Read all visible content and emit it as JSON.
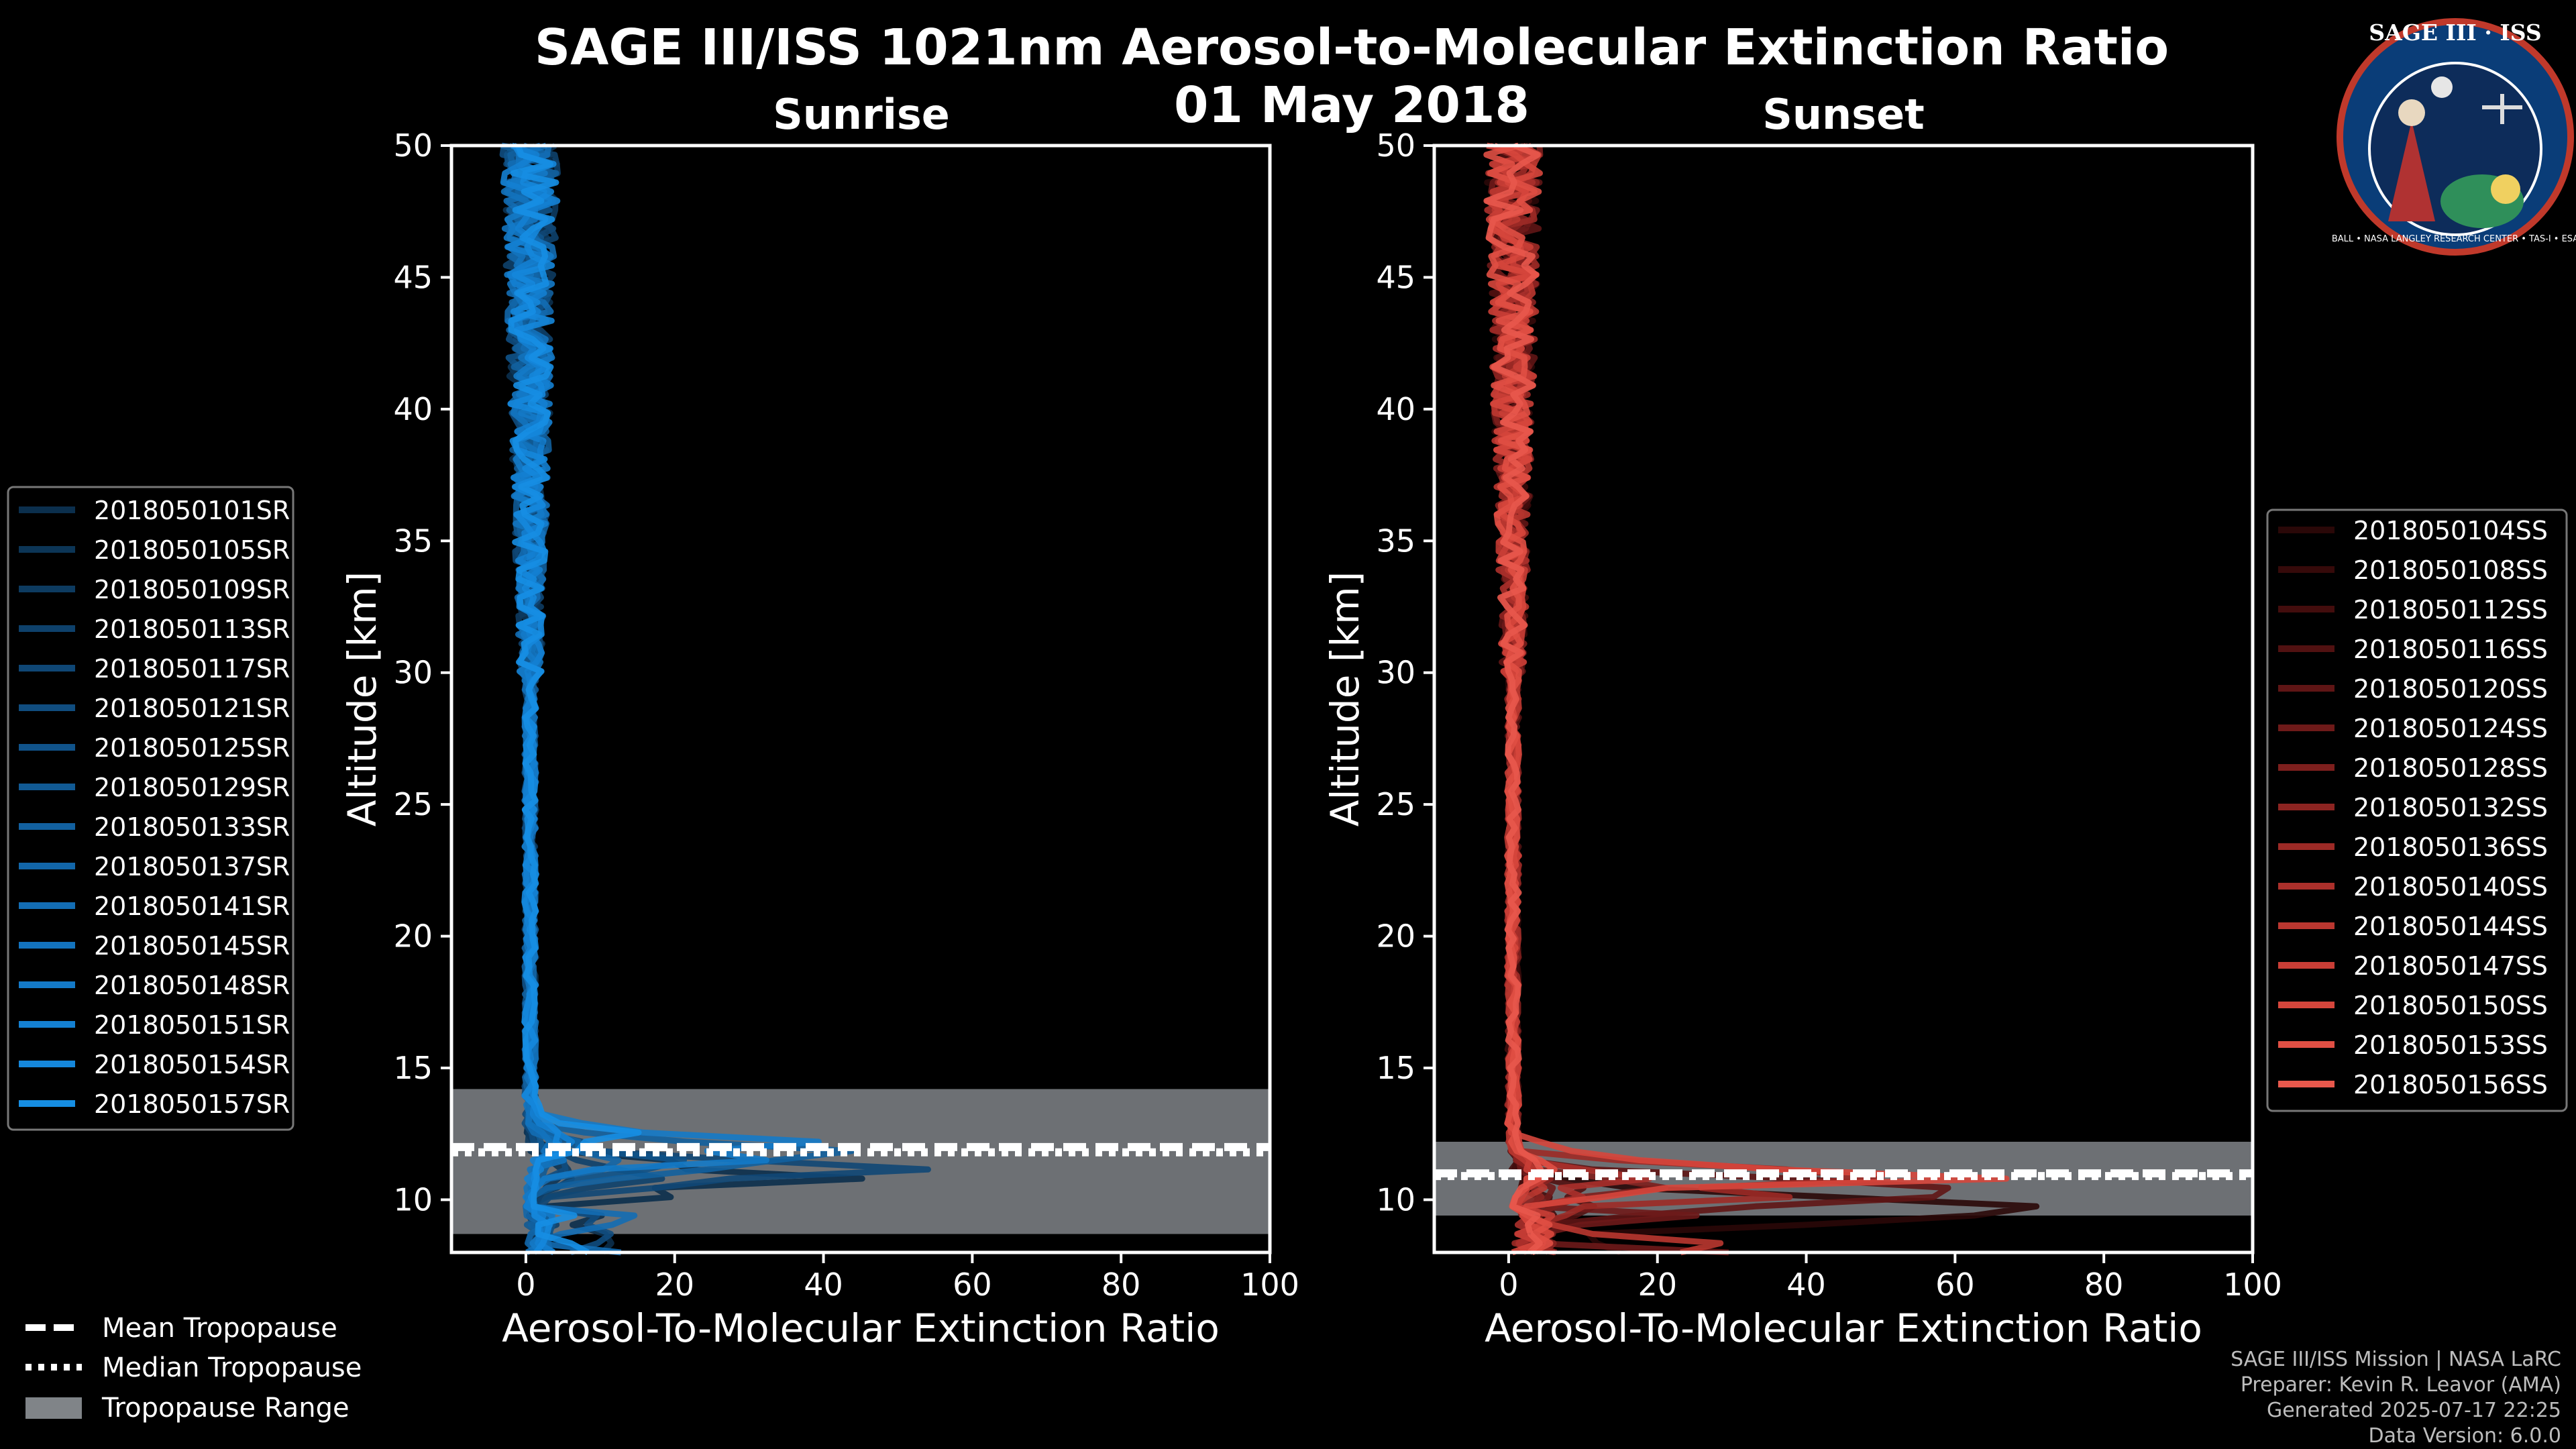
{
  "chart_data": {
    "type": "line",
    "title": "SAGE III/ISS 1021nm Aerosol-to-Molecular Extinction Ratio",
    "subtitle": "01 May 2018",
    "panels": [
      {
        "key": "sunrise",
        "title": "Sunrise",
        "xlabel": "Aerosol-To-Molecular Extinction Ratio",
        "ylabel": "Altitude [km]",
        "xlim": [
          -10,
          100
        ],
        "ylim": [
          8,
          50
        ],
        "xticks": [
          0,
          20,
          40,
          60,
          80,
          100
        ],
        "yticks": [
          10,
          15,
          20,
          25,
          30,
          35,
          40,
          45,
          50
        ],
        "tropopause_mean": 12.0,
        "tropopause_median": 11.8,
        "tropopause_range": [
          8.7,
          14.2
        ],
        "legend_location": "outside-left",
        "series": [
          {
            "name": "2018050101SR",
            "color": "#0b2f4d"
          },
          {
            "name": "2018050105SR",
            "color": "#0c3556"
          },
          {
            "name": "2018050109SR",
            "color": "#0d3b60"
          },
          {
            "name": "2018050113SR",
            "color": "#0e416b"
          },
          {
            "name": "2018050117SR",
            "color": "#0f4775"
          },
          {
            "name": "2018050121SR",
            "color": "#104d7f"
          },
          {
            "name": "2018050125SR",
            "color": "#10538a"
          },
          {
            "name": "2018050129SR",
            "color": "#115a94"
          },
          {
            "name": "2018050133SR",
            "color": "#12609f"
          },
          {
            "name": "2018050137SR",
            "color": "#1266a9"
          },
          {
            "name": "2018050141SR",
            "color": "#136db4"
          },
          {
            "name": "2018050145SR",
            "color": "#1373be"
          },
          {
            "name": "2018050148SR",
            "color": "#147ac8"
          },
          {
            "name": "2018050151SR",
            "color": "#1480d2"
          },
          {
            "name": "2018050154SR",
            "color": "#1587db"
          },
          {
            "name": "2018050157SR",
            "color": "#168ee3"
          }
        ]
      },
      {
        "key": "sunset",
        "title": "Sunset",
        "xlabel": "Aerosol-To-Molecular Extinction Ratio",
        "ylabel": "Altitude [km]",
        "xlim": [
          -10,
          100
        ],
        "ylim": [
          8,
          50
        ],
        "xticks": [
          0,
          20,
          40,
          60,
          80,
          100
        ],
        "yticks": [
          10,
          15,
          20,
          25,
          30,
          35,
          40,
          45,
          50
        ],
        "tropopause_mean": 11.0,
        "tropopause_median": 10.9,
        "tropopause_range": [
          9.4,
          12.2
        ],
        "legend_location": "outside-right",
        "series": [
          {
            "name": "2018050104SS",
            "color": "#2a0808"
          },
          {
            "name": "2018050108SS",
            "color": "#360a0a"
          },
          {
            "name": "2018050112SS",
            "color": "#430d0d"
          },
          {
            "name": "2018050116SS",
            "color": "#511111"
          },
          {
            "name": "2018050120SS",
            "color": "#5f1515"
          },
          {
            "name": "2018050124SS",
            "color": "#6e1a19"
          },
          {
            "name": "2018050128SS",
            "color": "#7d1f1d"
          },
          {
            "name": "2018050132SS",
            "color": "#8c2421"
          },
          {
            "name": "2018050136SS",
            "color": "#9c2a26"
          },
          {
            "name": "2018050140SS",
            "color": "#ab302b"
          },
          {
            "name": "2018050144SS",
            "color": "#ba3730"
          },
          {
            "name": "2018050147SS",
            "color": "#c93e36"
          },
          {
            "name": "2018050150SS",
            "color": "#d6463c"
          },
          {
            "name": "2018050153SS",
            "color": "#e04f44"
          },
          {
            "name": "2018050156SS",
            "color": "#e8584c"
          }
        ]
      }
    ],
    "shared_legend": {
      "mean": "Mean Tropopause",
      "median": "Median Tropopause",
      "range": "Tropopause Range"
    }
  },
  "logo": {
    "text": "SAGE III · ISS",
    "ring_text": "BALL • NASA LANGLEY RESEARCH CENTER • TAS-I • ESA"
  },
  "footer": {
    "line1": "SAGE III/ISS Mission | NASA LaRC",
    "line2": "Preparer: Kevin R. Leavor (AMA)",
    "line3": "Generated 2025-07-17 22:25",
    "line4": "Data Version: 6.0.0"
  },
  "colors": {
    "background": "#000000",
    "tropopause_fill": "#808488",
    "frame": "#ffffff"
  }
}
